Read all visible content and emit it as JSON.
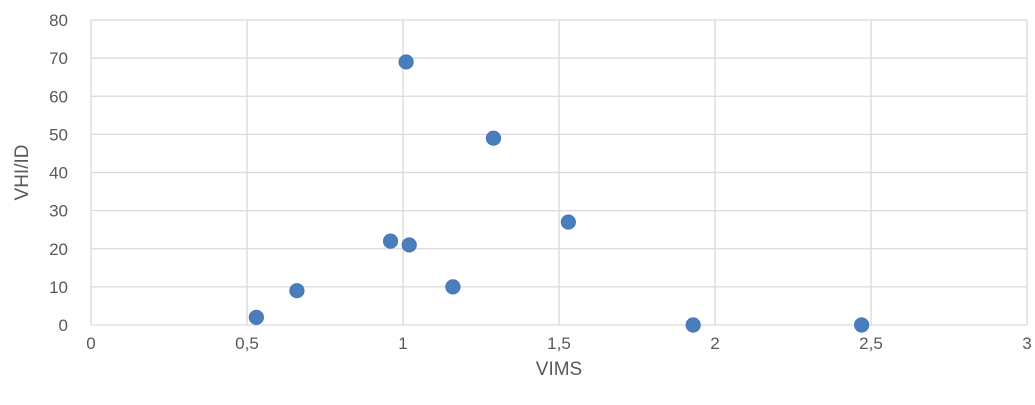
{
  "chart_data": {
    "type": "scatter",
    "title": "",
    "xlabel": "VIMS",
    "ylabel": "VHI/ID",
    "xlim": [
      0,
      3
    ],
    "ylim": [
      0,
      80
    ],
    "x_ticks": [
      0,
      0.5,
      1,
      1.5,
      2,
      2.5,
      3
    ],
    "x_tick_labels": [
      "0",
      "0,5",
      "1",
      "1,5",
      "2",
      "2,5",
      "3"
    ],
    "y_ticks": [
      0,
      10,
      20,
      30,
      40,
      50,
      60,
      70,
      80
    ],
    "y_tick_labels": [
      "0",
      "10",
      "20",
      "30",
      "40",
      "50",
      "60",
      "70",
      "80"
    ],
    "grid": true,
    "legend": "none",
    "marker_color": "#4a7ebb",
    "series": [
      {
        "points": [
          {
            "x": 0.53,
            "y": 2
          },
          {
            "x": 0.66,
            "y": 9
          },
          {
            "x": 0.96,
            "y": 22
          },
          {
            "x": 1.01,
            "y": 69
          },
          {
            "x": 1.02,
            "y": 21
          },
          {
            "x": 1.16,
            "y": 10
          },
          {
            "x": 1.29,
            "y": 49
          },
          {
            "x": 1.53,
            "y": 27
          },
          {
            "x": 1.93,
            "y": 0
          },
          {
            "x": 2.47,
            "y": 0
          }
        ]
      }
    ]
  }
}
